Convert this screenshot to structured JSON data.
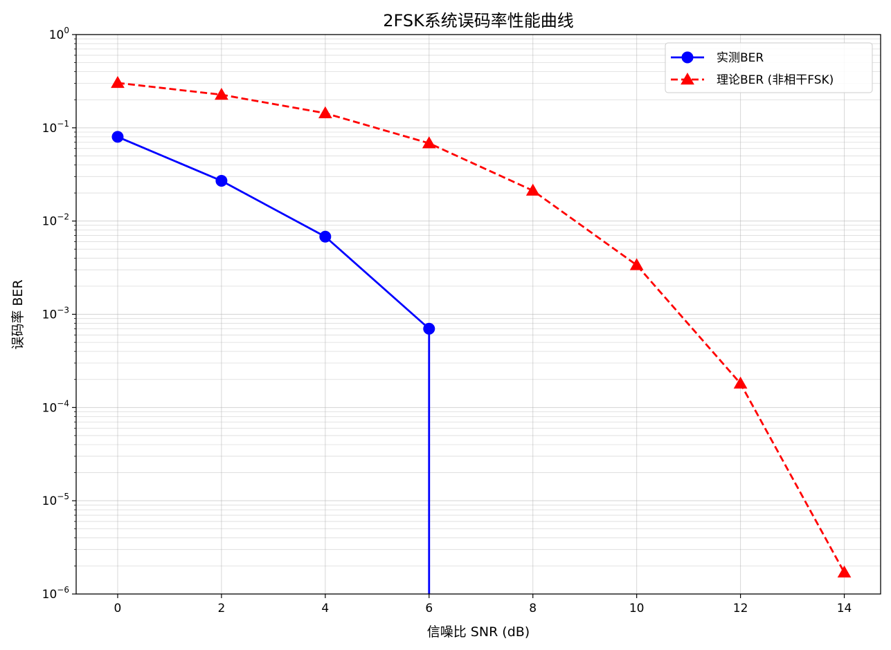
{
  "chart_data": {
    "type": "line",
    "title": "2FSK系统误码率性能曲线",
    "xlabel": "信噪比 SNR (dB)",
    "ylabel": "误码率 BER",
    "xlim": [
      -0.8,
      14.7
    ],
    "ylim": [
      1e-06,
      1
    ],
    "yscale": "log",
    "grid": true,
    "legend_position": "top-right",
    "x_ticks": [
      0,
      2,
      4,
      6,
      8,
      10,
      12,
      14
    ],
    "x_tick_labels": [
      "0",
      "2",
      "4",
      "6",
      "8",
      "10",
      "12",
      "14"
    ],
    "y_tick_exponents": [
      0,
      -1,
      -2,
      -3,
      -4,
      -5,
      -6
    ],
    "y_tick_base": "10",
    "series": [
      {
        "name": "实测BER",
        "color": "#0000ff",
        "line_style": "solid",
        "marker": "circle",
        "points": [
          {
            "x": 0,
            "y": 0.08
          },
          {
            "x": 2,
            "y": 0.027
          },
          {
            "x": 4,
            "y": 0.0068
          },
          {
            "x": 6,
            "y": 0.0007
          }
        ],
        "drop_to_zero_at_x": 6
      },
      {
        "name": "理论BER (非相干FSK)",
        "color": "#ff0000",
        "line_style": "dashed",
        "marker": "triangle",
        "points": [
          {
            "x": 0,
            "y": 0.303
          },
          {
            "x": 2,
            "y": 0.2265
          },
          {
            "x": 4,
            "y": 0.1434
          },
          {
            "x": 6,
            "y": 0.0683
          },
          {
            "x": 8,
            "y": 0.0212
          },
          {
            "x": 10,
            "y": 0.00337
          },
          {
            "x": 12,
            "y": 0.000181
          },
          {
            "x": 14,
            "y": 1.7e-06
          }
        ]
      }
    ]
  }
}
